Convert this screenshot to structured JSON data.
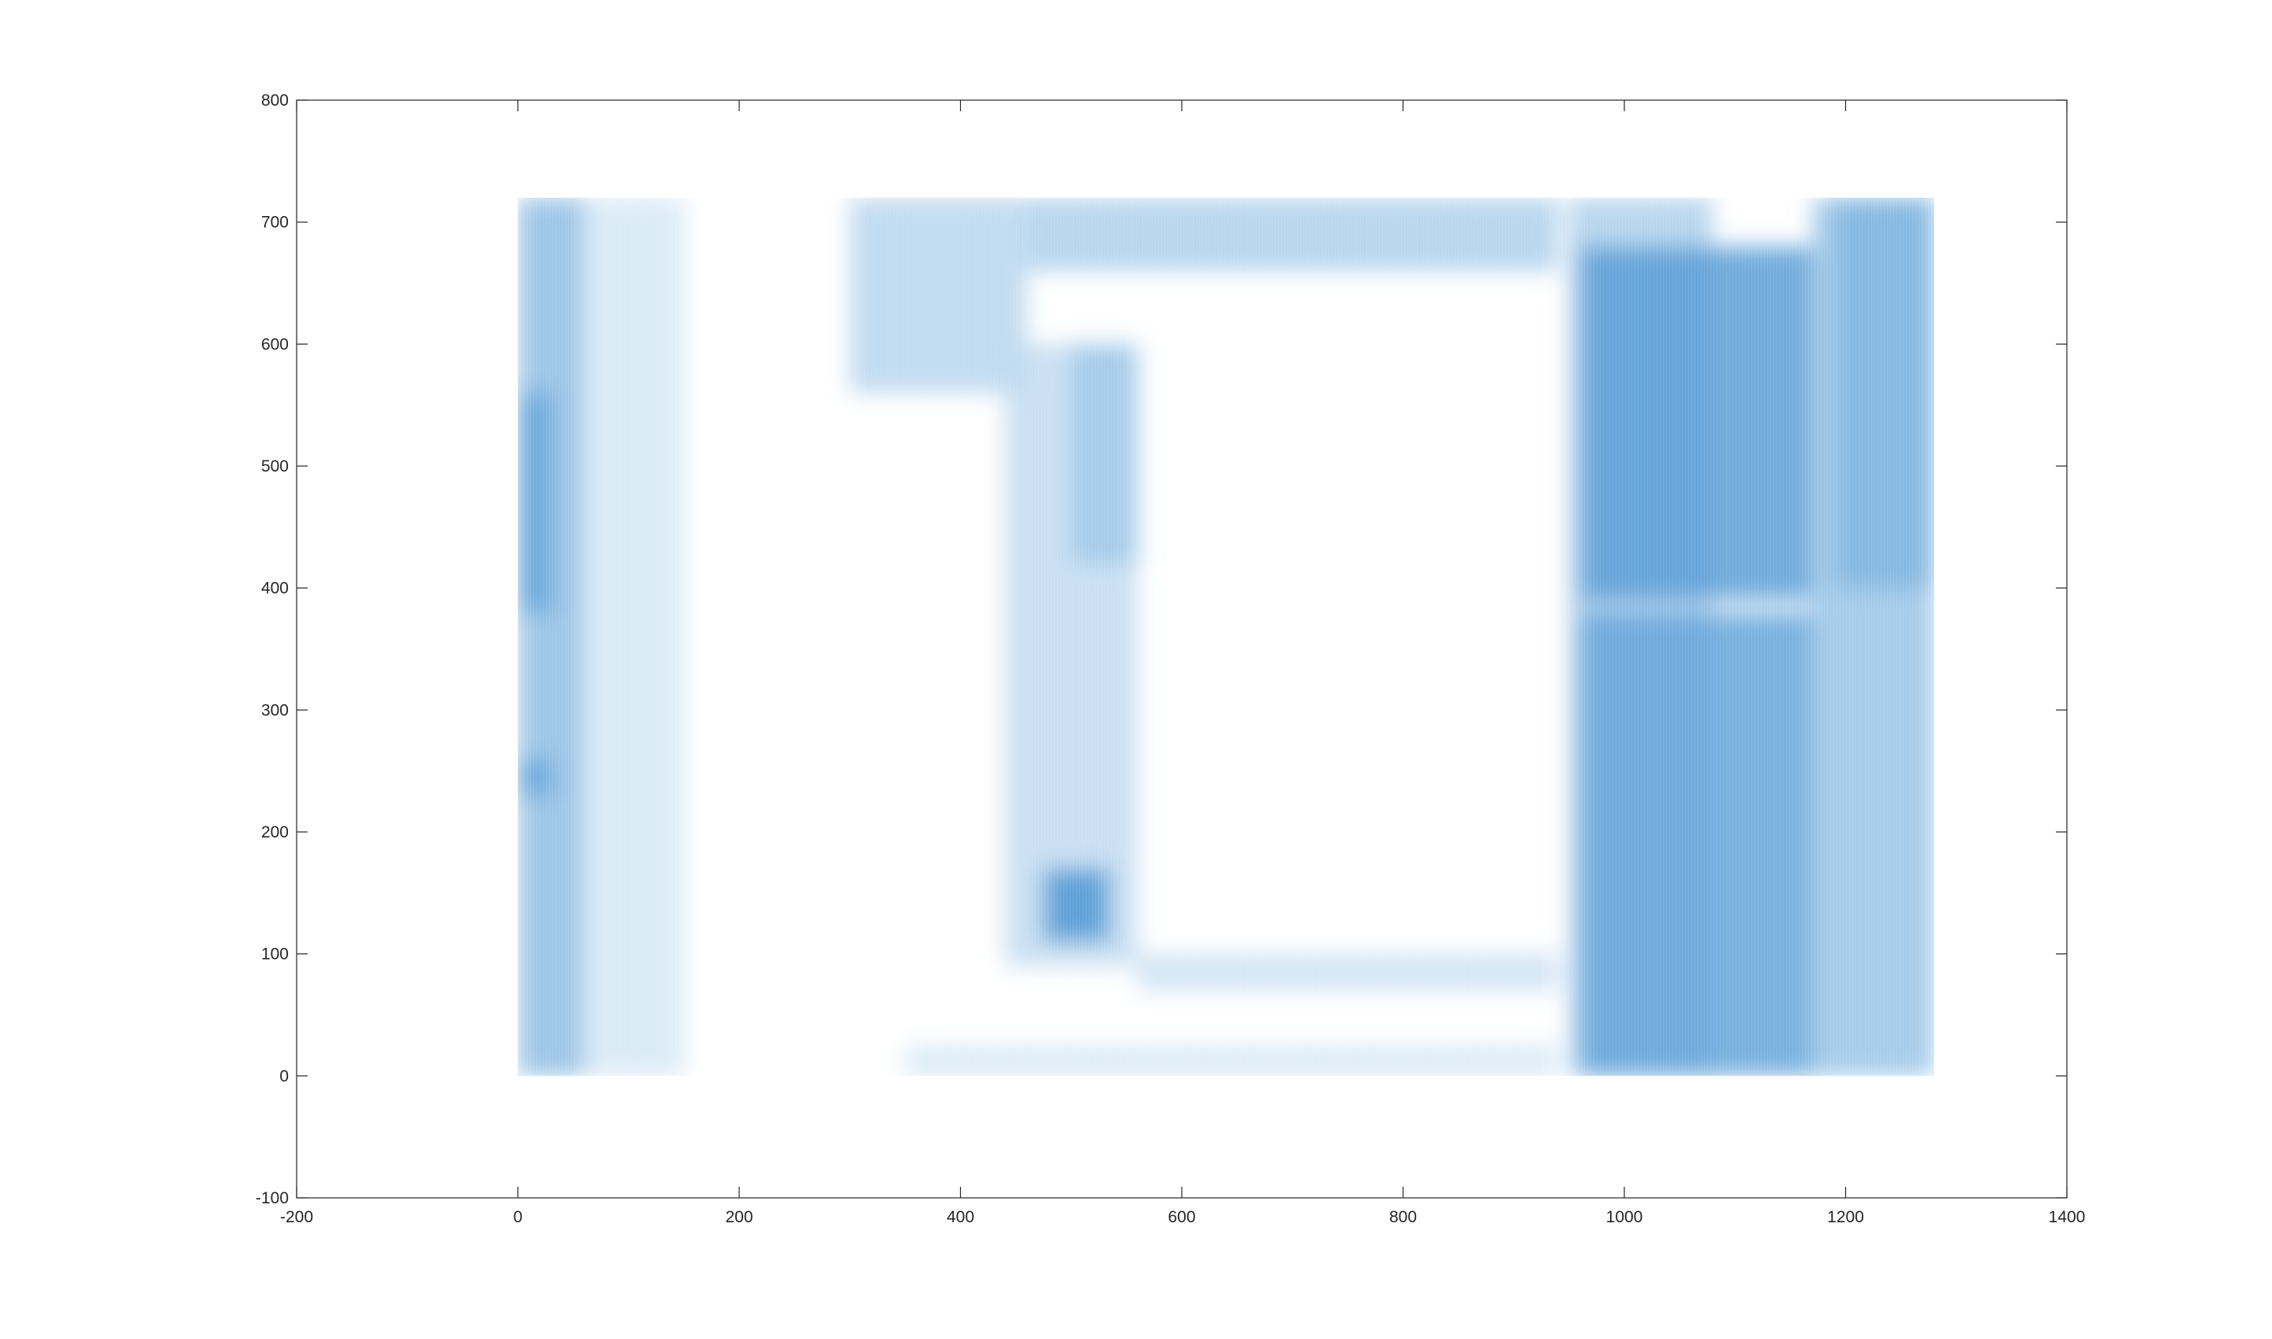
{
  "chart_data": {
    "type": "heatmap",
    "title": "",
    "xlabel": "",
    "ylabel": "",
    "xlim": [
      -200,
      1400
    ],
    "ylim": [
      -100,
      800
    ],
    "x_ticks": [
      -200,
      0,
      200,
      400,
      600,
      800,
      1000,
      1200,
      1400
    ],
    "y_ticks": [
      -100,
      0,
      100,
      200,
      300,
      400,
      500,
      600,
      700,
      800
    ],
    "x_tick_labels": [
      "-200",
      "0",
      "200",
      "400",
      "600",
      "800",
      "1000",
      "1200",
      "1400"
    ],
    "y_tick_labels": [
      "-100",
      "0",
      "100",
      "200",
      "300",
      "400",
      "500",
      "600",
      "700",
      "800"
    ],
    "image_extent": {
      "x": [
        0,
        1280
      ],
      "y": [
        0,
        720
      ]
    },
    "colormap": [
      "#ffffff",
      "#2f86cc"
    ],
    "grid": false,
    "box": true,
    "regions": [
      {
        "x": [
          0,
          60
        ],
        "y": [
          0,
          720
        ],
        "intensity": 0.55
      },
      {
        "x": [
          0,
          30
        ],
        "y": [
          380,
          560
        ],
        "intensity": 0.75
      },
      {
        "x": [
          0,
          30
        ],
        "y": [
          230,
          260
        ],
        "intensity": 0.75
      },
      {
        "x": [
          60,
          150
        ],
        "y": [
          0,
          720
        ],
        "intensity": 0.2
      },
      {
        "x": [
          300,
          460
        ],
        "y": [
          560,
          720
        ],
        "intensity": 0.35
      },
      {
        "x": [
          460,
          940
        ],
        "y": [
          660,
          720
        ],
        "intensity": 0.4
      },
      {
        "x": [
          440,
          560
        ],
        "y": [
          90,
          600
        ],
        "intensity": 0.3
      },
      {
        "x": [
          475,
          535
        ],
        "y": [
          110,
          170
        ],
        "intensity": 0.85
      },
      {
        "x": [
          500,
          560
        ],
        "y": [
          420,
          600
        ],
        "intensity": 0.45
      },
      {
        "x": [
          560,
          940
        ],
        "y": [
          70,
          100
        ],
        "intensity": 0.25
      },
      {
        "x": [
          350,
          940
        ],
        "y": [
          0,
          25
        ],
        "intensity": 0.2
      },
      {
        "x": [
          950,
          1080
        ],
        "y": [
          0,
          720
        ],
        "intensity": 0.4
      },
      {
        "x": [
          960,
          1170
        ],
        "y": [
          0,
          380
        ],
        "intensity": 0.75
      },
      {
        "x": [
          960,
          1170
        ],
        "y": [
          390,
          680
        ],
        "intensity": 0.8
      },
      {
        "x": [
          1170,
          1280
        ],
        "y": [
          0,
          720
        ],
        "intensity": 0.5
      },
      {
        "x": [
          1190,
          1280
        ],
        "y": [
          400,
          720
        ],
        "intensity": 0.6
      }
    ]
  }
}
